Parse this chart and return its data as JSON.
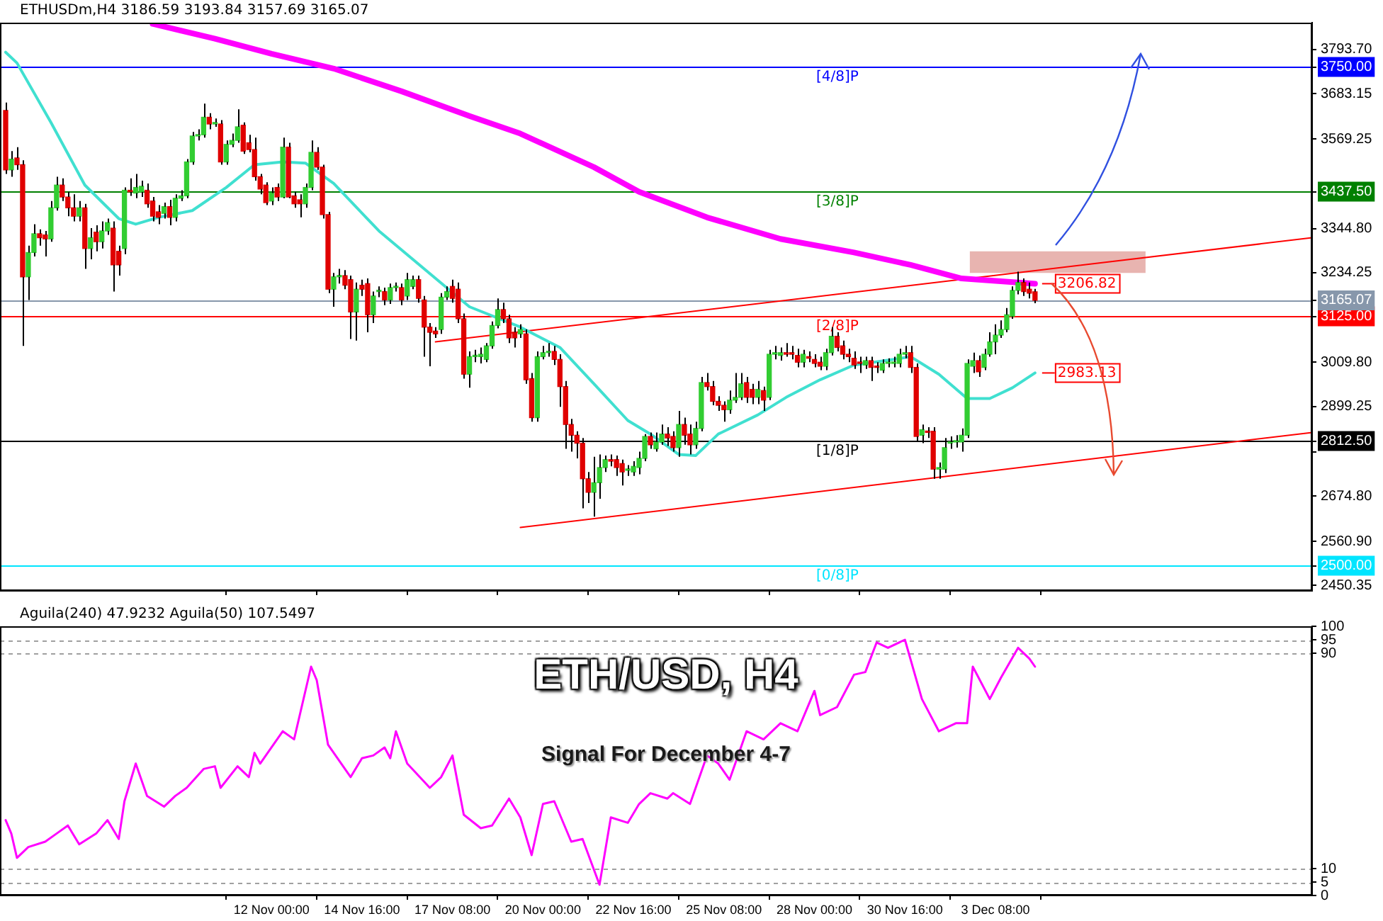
{
  "chart_data": [
    {
      "type": "candlestick",
      "title": "ETHUSDm,H4 3186.59 3193.84 3157.69 3165.07",
      "x": [
        "--11-04T04:00",
        "--11-04T08:00",
        "--11-04T12:00",
        "--11-04T16:00",
        "--11-04T20:00",
        "--11-05T00:00",
        "--11-05T04:00",
        "--11-05T08:00",
        "--11-05T12:00",
        "--11-05T16:00",
        "--11-05T20:00",
        "--11-06T00:00",
        "--11-06T04:00",
        "--11-06T08:00",
        "--11-06T12:00",
        "--11-06T16:00",
        "--11-06T20:00",
        "--11-07T00:00",
        "--11-07T04:00",
        "--11-07T08:00",
        "--11-07T12:00",
        "--11-07T16:00",
        "--11-07T20:00",
        "--11-08T00:00",
        "--11-08T04:00",
        "--11-08T08:00",
        "--11-08T12:00",
        "--11-08T16:00",
        "--11-08T20:00",
        "--11-09T00:00",
        "--11-09T04:00",
        "--11-09T08:00",
        "--11-09T12:00",
        "--11-09T16:00",
        "--11-09T20:00",
        "--11-10T00:00",
        "--11-10T04:00",
        "--11-10T08:00",
        "--11-10T12:00",
        "--11-10T16:00",
        "--11-10T20:00",
        "--11-11T00:00",
        "--11-11T04:00",
        "--11-11T08:00",
        "--11-11T12:00",
        "--11-11T16:00",
        "--11-11T20:00",
        "--11-12T00:00",
        "--11-12T04:00",
        "--11-12T08:00",
        "--11-12T12:00",
        "--11-12T16:00",
        "--11-12T20:00",
        "--11-13T00:00",
        "--11-13T04:00",
        "--11-13T08:00",
        "--11-13T12:00",
        "--11-13T16:00",
        "--11-13T20:00",
        "--11-14T00:00",
        "--11-14T04:00",
        "--11-14T08:00",
        "--11-14T12:00",
        "--11-14T16:00",
        "--11-14T20:00",
        "--11-15T00:00",
        "--11-15T04:00",
        "--11-15T08:00",
        "--11-15T12:00",
        "--11-15T16:00",
        "--11-15T20:00",
        "--11-16T00:00",
        "--11-16T04:00",
        "--11-16T08:00",
        "--11-16T12:00",
        "--11-16T16:00",
        "--11-16T20:00",
        "--11-17T00:00",
        "--11-17T04:00",
        "--11-17T08:00",
        "--11-17T12:00",
        "--11-17T16:00",
        "--11-17T20:00",
        "--11-18T00:00",
        "--11-18T04:00",
        "--11-18T08:00",
        "--11-18T12:00",
        "--11-18T16:00",
        "--11-18T20:00",
        "--11-19T00:00",
        "--11-19T04:00",
        "--11-19T08:00",
        "--11-19T12:00",
        "--11-19T16:00",
        "--11-19T20:00",
        "--11-20T00:00",
        "--11-20T04:00",
        "--11-20T08:00",
        "--11-20T12:00",
        "--11-20T16:00",
        "--11-20T20:00",
        "--11-21T00:00",
        "--11-21T04:00",
        "--11-21T08:00",
        "--11-21T12:00",
        "--11-21T16:00",
        "--11-21T20:00",
        "--11-22T00:00",
        "--11-22T04:00",
        "--11-22T08:00",
        "--11-22T12:00",
        "--11-22T16:00",
        "--11-22T20:00",
        "--11-23T00:00",
        "--11-23T04:00",
        "--11-23T08:00",
        "--11-23T12:00",
        "--11-23T16:00",
        "--11-23T20:00",
        "--11-24T00:00",
        "--11-24T04:00",
        "--11-24T08:00",
        "--11-24T12:00",
        "--11-24T16:00",
        "--11-24T20:00",
        "--11-25T00:00",
        "--11-25T04:00",
        "--11-25T08:00",
        "--11-25T12:00",
        "--11-25T16:00",
        "--11-25T20:00",
        "--11-26T00:00",
        "--11-26T04:00",
        "--11-26T08:00",
        "--11-26T12:00",
        "--11-26T16:00",
        "--11-26T20:00",
        "--11-27T00:00",
        "--11-27T04:00",
        "--11-27T08:00",
        "--11-27T12:00",
        "--11-27T16:00",
        "--11-27T20:00",
        "--11-28T00:00",
        "--11-28T04:00",
        "--11-28T08:00",
        "--11-28T12:00",
        "--11-28T16:00",
        "--11-28T20:00",
        "--11-29T00:00",
        "--11-29T04:00",
        "--11-29T08:00",
        "--11-29T12:00",
        "--11-29T16:00",
        "--11-29T20:00",
        "--11-30T00:00",
        "--11-30T04:00",
        "--11-30T08:00",
        "--11-30T12:00",
        "--11-30T16:00",
        "--11-30T20:00",
        "--12-01T00:00",
        "--12-01T04:00",
        "--12-01T08:00",
        "--12-01T12:00",
        "--12-01T16:00",
        "--12-01T20:00",
        "--12-02T00:00",
        "--12-02T04:00",
        "--12-02T08:00",
        "--12-02T12:00",
        "--12-02T16:00",
        "--12-02T20:00",
        "--12-03T00:00",
        "--12-03T04:00",
        "--12-03T08:00",
        "--12-03T12:00",
        "--12-03T16:00",
        "--12-03T20:00",
        "--12-04T00:00",
        "--12-04T04:00",
        "--12-04T08:00",
        "--12-04T12:00"
      ],
      "ohlc": [
        [
          3641,
          3661,
          3482,
          3492
        ],
        [
          3492,
          3539,
          3475,
          3519
        ],
        [
          3522,
          3549,
          3492,
          3505
        ],
        [
          3505,
          3516,
          3051,
          3224
        ],
        [
          3224,
          3302,
          3166,
          3285
        ],
        [
          3285,
          3356,
          3275,
          3332
        ],
        [
          3332,
          3343,
          3302,
          3322
        ],
        [
          3329,
          3339,
          3275,
          3319
        ],
        [
          3319,
          3414,
          3312,
          3397
        ],
        [
          3397,
          3475,
          3390,
          3454
        ],
        [
          3454,
          3471,
          3414,
          3424
        ],
        [
          3424,
          3437,
          3376,
          3397
        ],
        [
          3397,
          3431,
          3363,
          3376
        ],
        [
          3376,
          3414,
          3363,
          3397
        ],
        [
          3397,
          3407,
          3244,
          3295
        ],
        [
          3295,
          3346,
          3268,
          3322
        ],
        [
          3336,
          3353,
          3288,
          3312
        ],
        [
          3312,
          3363,
          3295,
          3339
        ],
        [
          3339,
          3370,
          3329,
          3360
        ],
        [
          3346,
          3363,
          3187,
          3254
        ],
        [
          3288,
          3302,
          3227,
          3254
        ],
        [
          3295,
          3448,
          3281,
          3441
        ],
        [
          3441,
          3471,
          3427,
          3437
        ],
        [
          3434,
          3482,
          3421,
          3448
        ],
        [
          3437,
          3465,
          3424,
          3451
        ],
        [
          3441,
          3458,
          3397,
          3407
        ],
        [
          3414,
          3424,
          3363,
          3376
        ],
        [
          3387,
          3404,
          3356,
          3373
        ],
        [
          3383,
          3410,
          3370,
          3400
        ],
        [
          3400,
          3417,
          3353,
          3373
        ],
        [
          3373,
          3431,
          3363,
          3421
        ],
        [
          3421,
          3441,
          3414,
          3427
        ],
        [
          3427,
          3519,
          3421,
          3512
        ],
        [
          3512,
          3587,
          3505,
          3577
        ],
        [
          3577,
          3594,
          3566,
          3580
        ],
        [
          3580,
          3658,
          3573,
          3624
        ],
        [
          3624,
          3634,
          3594,
          3607
        ],
        [
          3607,
          3621,
          3600,
          3611
        ],
        [
          3607,
          3617,
          3505,
          3512
        ],
        [
          3512,
          3566,
          3505,
          3556
        ],
        [
          3556,
          3583,
          3549,
          3566
        ],
        [
          3566,
          3644,
          3560,
          3600
        ],
        [
          3604,
          3611,
          3532,
          3539
        ],
        [
          3560,
          3580,
          3536,
          3543
        ],
        [
          3543,
          3573,
          3465,
          3475
        ],
        [
          3475,
          3482,
          3431,
          3444
        ],
        [
          3454,
          3461,
          3404,
          3410
        ],
        [
          3414,
          3448,
          3404,
          3434
        ],
        [
          3448,
          3458,
          3414,
          3424
        ],
        [
          3424,
          3573,
          3421,
          3549
        ],
        [
          3549,
          3560,
          3421,
          3424
        ],
        [
          3427,
          3437,
          3397,
          3407
        ],
        [
          3417,
          3431,
          3373,
          3407
        ],
        [
          3407,
          3458,
          3397,
          3448
        ],
        [
          3448,
          3566,
          3441,
          3536
        ],
        [
          3536,
          3549,
          3492,
          3499
        ],
        [
          3499,
          3505,
          3370,
          3380
        ],
        [
          3380,
          3387,
          3183,
          3193
        ],
        [
          3193,
          3234,
          3149,
          3224
        ],
        [
          3224,
          3244,
          3207,
          3227
        ],
        [
          3227,
          3241,
          3193,
          3203
        ],
        [
          3217,
          3227,
          3068,
          3136
        ],
        [
          3136,
          3210,
          3064,
          3193
        ],
        [
          3203,
          3217,
          3176,
          3193
        ],
        [
          3207,
          3220,
          3085,
          3129
        ],
        [
          3129,
          3187,
          3108,
          3176
        ],
        [
          3187,
          3200,
          3173,
          3190
        ],
        [
          3187,
          3197,
          3153,
          3166
        ],
        [
          3166,
          3207,
          3156,
          3197
        ],
        [
          3197,
          3210,
          3187,
          3200
        ],
        [
          3197,
          3207,
          3153,
          3166
        ],
        [
          3176,
          3234,
          3166,
          3217
        ],
        [
          3200,
          3227,
          3193,
          3217
        ],
        [
          3217,
          3227,
          3159,
          3170
        ],
        [
          3166,
          3176,
          3024,
          3098
        ],
        [
          3098,
          3108,
          3000,
          3085
        ],
        [
          3088,
          3098,
          3071,
          3081
        ],
        [
          3092,
          3183,
          3081,
          3173
        ],
        [
          3173,
          3200,
          3166,
          3187
        ],
        [
          3200,
          3217,
          3159,
          3170
        ],
        [
          3193,
          3210,
          3108,
          3119
        ],
        [
          3119,
          3132,
          2969,
          2980
        ],
        [
          2980,
          3037,
          2946,
          3024
        ],
        [
          3024,
          3041,
          3010,
          3027
        ],
        [
          3024,
          3047,
          3007,
          3030
        ],
        [
          3017,
          3058,
          3010,
          3051
        ],
        [
          3051,
          3112,
          3044,
          3102
        ],
        [
          3102,
          3170,
          3095,
          3142
        ],
        [
          3142,
          3159,
          3108,
          3119
        ],
        [
          3119,
          3129,
          3058,
          3071
        ],
        [
          3085,
          3098,
          3047,
          3071
        ],
        [
          3081,
          3105,
          3071,
          3092
        ],
        [
          3081,
          3092,
          2956,
          2966
        ],
        [
          2969,
          2983,
          2861,
          2871
        ],
        [
          2871,
          3037,
          2861,
          3024
        ],
        [
          3024,
          3051,
          3017,
          3034
        ],
        [
          3034,
          3058,
          3024,
          3037
        ],
        [
          3037,
          3051,
          3003,
          3017
        ],
        [
          3017,
          3030,
          2898,
          2949
        ],
        [
          2949,
          2963,
          2793,
          2854
        ],
        [
          2854,
          2868,
          2786,
          2827
        ],
        [
          2827,
          2837,
          2769,
          2807
        ],
        [
          2807,
          2820,
          2644,
          2718
        ],
        [
          2718,
          2735,
          2657,
          2684
        ],
        [
          2684,
          2773,
          2623,
          2708
        ],
        [
          2708,
          2779,
          2668,
          2746
        ],
        [
          2746,
          2776,
          2735,
          2766
        ],
        [
          2766,
          2779,
          2749,
          2762
        ],
        [
          2766,
          2776,
          2725,
          2746
        ],
        [
          2756,
          2766,
          2701,
          2735
        ],
        [
          2739,
          2752,
          2725,
          2742
        ],
        [
          2735,
          2762,
          2725,
          2749
        ],
        [
          2746,
          2786,
          2729,
          2769
        ],
        [
          2769,
          2830,
          2762,
          2824
        ],
        [
          2824,
          2834,
          2793,
          2803
        ],
        [
          2793,
          2834,
          2786,
          2810
        ],
        [
          2810,
          2854,
          2803,
          2830
        ],
        [
          2830,
          2847,
          2800,
          2820
        ],
        [
          2824,
          2837,
          2786,
          2796
        ],
        [
          2796,
          2888,
          2773,
          2854
        ],
        [
          2854,
          2871,
          2803,
          2827
        ],
        [
          2830,
          2854,
          2779,
          2803
        ],
        [
          2803,
          2861,
          2793,
          2844
        ],
        [
          2844,
          2973,
          2837,
          2959
        ],
        [
          2959,
          2983,
          2939,
          2949
        ],
        [
          2949,
          2963,
          2902,
          2912
        ],
        [
          2912,
          2925,
          2888,
          2902
        ],
        [
          2902,
          2912,
          2861,
          2891
        ],
        [
          2891,
          2939,
          2881,
          2915
        ],
        [
          2915,
          2983,
          2908,
          2922
        ],
        [
          2922,
          2983,
          2915,
          2956
        ],
        [
          2959,
          2973,
          2908,
          2922
        ],
        [
          2942,
          2956,
          2905,
          2922
        ],
        [
          2922,
          2963,
          2905,
          2942
        ],
        [
          2939,
          2949,
          2888,
          2915
        ],
        [
          2922,
          3041,
          2915,
          3030
        ],
        [
          3030,
          3051,
          3017,
          3034
        ],
        [
          3027,
          3047,
          3014,
          3034
        ],
        [
          3034,
          3058,
          3024,
          3030
        ],
        [
          3034,
          3051,
          3017,
          3030
        ],
        [
          3027,
          3044,
          2997,
          3010
        ],
        [
          3010,
          3041,
          2997,
          3030
        ],
        [
          3024,
          3037,
          3010,
          3020
        ],
        [
          3017,
          3030,
          2997,
          3007
        ],
        [
          3010,
          3024,
          2990,
          3000
        ],
        [
          3000,
          3044,
          2990,
          3034
        ],
        [
          3034,
          3098,
          3027,
          3075
        ],
        [
          3075,
          3085,
          3037,
          3047
        ],
        [
          3051,
          3064,
          3017,
          3030
        ],
        [
          3030,
          3044,
          3010,
          3024
        ],
        [
          3020,
          3037,
          2993,
          3003
        ],
        [
          3010,
          3024,
          2983,
          3007
        ],
        [
          3003,
          3024,
          2993,
          3014
        ],
        [
          3014,
          3024,
          2963,
          2997
        ],
        [
          3000,
          3010,
          2983,
          2997
        ],
        [
          2990,
          3017,
          2983,
          3007
        ],
        [
          3007,
          3020,
          2997,
          3010
        ],
        [
          3007,
          3024,
          2997,
          3010
        ],
        [
          3007,
          3044,
          2997,
          3030
        ],
        [
          3030,
          3051,
          3020,
          3034
        ],
        [
          3034,
          3051,
          2983,
          2997
        ],
        [
          2997,
          3007,
          2813,
          2824
        ],
        [
          2827,
          2854,
          2807,
          2841
        ],
        [
          2837,
          2847,
          2820,
          2834
        ],
        [
          2837,
          2847,
          2718,
          2742
        ],
        [
          2742,
          2759,
          2718,
          2746
        ],
        [
          2742,
          2820,
          2732,
          2796
        ],
        [
          2807,
          2824,
          2793,
          2810
        ],
        [
          2810,
          2827,
          2796,
          2813
        ],
        [
          2810,
          2844,
          2786,
          2827
        ],
        [
          2827,
          3017,
          2820,
          3007
        ],
        [
          3000,
          3034,
          2983,
          3014
        ],
        [
          3014,
          3027,
          2973,
          2986
        ],
        [
          2997,
          3044,
          2990,
          3030
        ],
        [
          3030,
          3085,
          3024,
          3061
        ],
        [
          3061,
          3105,
          3030,
          3078
        ],
        [
          3078,
          3115,
          3071,
          3092
        ],
        [
          3092,
          3146,
          3085,
          3129
        ],
        [
          3125,
          3200,
          3119,
          3190
        ],
        [
          3190,
          3237,
          3180,
          3210
        ],
        [
          3210,
          3220,
          3176,
          3187
        ],
        [
          3193,
          3210,
          3170,
          3183
        ],
        [
          3186.59,
          3193.84,
          3157.69,
          3165.07
        ]
      ],
      "series": [
        {
          "type": "line",
          "color": "#ff00ff",
          "x": [
            "--11-08T12:00",
            "--11-10T08:00",
            "--11-12T00:00",
            "--11-13T20:00",
            "--11-15T20:00",
            "--11-17T20:00",
            "--11-19T08:00",
            "--11-21T12:00",
            "--11-22T20:00",
            "--11-24T20:00",
            "--11-27T00:00",
            "--11-29T04:00",
            "--11-30T20:00",
            "--12-02T08:00",
            "--12-04T12:00"
          ],
          "values": [
            3858,
            3821,
            3783,
            3746,
            3689,
            3627,
            3583,
            3499,
            3437,
            3373,
            3319,
            3285,
            3254,
            3220,
            3206.82
          ]
        },
        {
          "type": "line",
          "color": "#40e0d0",
          "x": [
            "--11-04T04:00",
            "--11-04T12:00",
            "--11-05T12:00",
            "--11-06T12:00",
            "--11-07T12:00",
            "--11-08T00:00",
            "--11-08T16:00",
            "--11-09T16:00",
            "--11-10T16:00",
            "--11-11T12:00",
            "--11-12T08:00",
            "--11-13T00:00",
            "--11-13T20:00",
            "--11-15T04:00",
            "--11-16T12:00",
            "--11-17T20:00",
            "--11-19T08:00",
            "--11-20T12:00",
            "--11-21T12:00",
            "--11-22T12:00",
            "--11-23T04:00",
            "--11-24T00:00",
            "--11-24T12:00",
            "--11-25T04:00",
            "--11-26T08:00",
            "--11-27T04:00",
            "--11-28T04:00",
            "--11-29T04:00",
            "--11-30T08:00",
            "--11-30T20:00",
            "--12-01T16:00",
            "--12-02T12:00",
            "--12-03T04:00",
            "--12-03T20:00",
            "--12-04T12:00"
          ],
          "values": [
            3787,
            3760,
            3611,
            3454,
            3370,
            3356,
            3373,
            3390,
            3448,
            3505,
            3512,
            3509,
            3458,
            3339,
            3244,
            3149,
            3098,
            3047,
            2956,
            2864,
            2830,
            2779,
            2776,
            2830,
            2878,
            2922,
            2966,
            3003,
            3017,
            3024,
            2980,
            2919,
            2919,
            2946,
            2983.13
          ]
        },
        {
          "type": "line",
          "color": "#ff0000",
          "x": [
            "--11-16T20:00",
            "--12-12T16:00"
          ],
          "values": [
            3061,
            3322
          ]
        },
        {
          "type": "line",
          "color": "#ff0000",
          "x": [
            "--11-19T08:00",
            "--12-12T16:00"
          ],
          "values": [
            2596,
            2834
          ]
        }
      ],
      "xlim": [
        "--11-04T00:00",
        "--12-12T16:00"
      ],
      "ylim": [
        2437,
        3861
      ],
      "xticks": [
        {
          "value": "--11-12T00:00",
          "label": null
        },
        {
          "value": "--11-14T16:00",
          "label": null
        },
        {
          "value": "--11-17T08:00",
          "label": null
        },
        {
          "value": "--11-20T00:00",
          "label": null
        },
        {
          "value": "--11-22T16:00",
          "label": null
        },
        {
          "value": "--11-25T08:00",
          "label": null
        },
        {
          "value": "--11-28T00:00",
          "label": null
        },
        {
          "value": "--11-30T16:00",
          "label": null
        },
        {
          "value": "--12-03T08:00",
          "label": null
        }
      ],
      "yticks": [
        {
          "value": 2450.35,
          "label": "2450.35"
        },
        {
          "value": 2500,
          "label": "2500.00"
        },
        {
          "value": 2560.9,
          "label": "2560.90"
        },
        {
          "value": 2674.8,
          "label": "2674.80"
        },
        {
          "value": 2785.35,
          "label": null
        },
        {
          "value": 2812.5,
          "label": "2812.50"
        },
        {
          "value": 2899.25,
          "label": "2899.25"
        },
        {
          "value": 3009.8,
          "label": "3009.80"
        },
        {
          "value": 3125,
          "label": "3125.00"
        },
        {
          "value": 3165.07,
          "label": "3165.07"
        },
        {
          "value": 3234.25,
          "label": "3234.25"
        },
        {
          "value": 3344.8,
          "label": "3344.80"
        },
        {
          "value": 3437.5,
          "label": "3437.50"
        },
        {
          "value": 3569.25,
          "label": "3569.25"
        },
        {
          "value": 3683.15,
          "label": "3683.15"
        },
        {
          "value": 3750,
          "label": "3750.00"
        },
        {
          "value": 3793.7,
          "label": "3793.70"
        }
      ],
      "tick_labels": "y",
      "ref_lines": [
        {
          "axis": "y",
          "value": 3750,
          "label": "[4/8]P",
          "color": "#0000ff"
        },
        {
          "axis": "y",
          "value": 3437.5,
          "label": "[3/8]P",
          "color": "#008000"
        },
        {
          "axis": "y",
          "value": 3125,
          "label": "[2/8]P",
          "color": "#ff0000"
        },
        {
          "axis": "y",
          "value": 2812.5,
          "label": "[1/8]P",
          "color": "#000000"
        },
        {
          "axis": "y",
          "value": 2500,
          "label": "[0/8]P",
          "color": "#00e5ff"
        },
        {
          "axis": "y",
          "value": 3165.07,
          "color": "#8797ab"
        }
      ],
      "bands": [
        {
          "axis": "y",
          "from": 3234,
          "to": 3288,
          "color": "#e8b4b0"
        }
      ],
      "annotations": [
        {
          "text": "3206.82",
          "x": "--12-04T12:00",
          "y": 3206.82
        },
        {
          "text": "2983.13",
          "x": "--12-04T12:00",
          "y": 2983.13
        }
      ]
    },
    {
      "type": "line",
      "title": "Aguila(240) 47.9232 Aguila(50) 107.5497",
      "color": "#ff00ff",
      "x": [
        "--11-04T04:00",
        "--11-04T08:00",
        "--11-04T12:00",
        "--11-04T20:00",
        "--11-05T08:00",
        "--11-05T16:00",
        "--11-06T00:00",
        "--11-06T08:00",
        "--11-06T20:00",
        "--11-07T04:00",
        "--11-07T12:00",
        "--11-07T16:00",
        "--11-08T00:00",
        "--11-08T08:00",
        "--11-08T20:00",
        "--11-09T04:00",
        "--11-09T12:00",
        "--11-10T00:00",
        "--11-10T08:00",
        "--11-10T12:00",
        "--11-11T00:00",
        "--11-11T08:00",
        "--11-11T12:00",
        "--11-11T16:00",
        "--11-11T20:00",
        "--11-12T08:00",
        "--11-12T16:00",
        "--11-13T04:00",
        "--11-13T08:00",
        "--11-13T16:00",
        "--11-14T08:00",
        "--11-14T16:00",
        "--11-15T00:00",
        "--11-15T08:00",
        "--11-15T12:00",
        "--11-15T16:00",
        "--11-16T00:00",
        "--11-16T16:00",
        "--11-17T00:00",
        "--11-17T08:00",
        "--11-17T16:00",
        "--11-18T04:00",
        "--11-18T12:00",
        "--11-19T00:00",
        "--11-19T08:00",
        "--11-19T16:00",
        "--11-20T00:00",
        "--11-20T08:00",
        "--11-20T20:00",
        "--11-21T04:00",
        "--11-21T16:00",
        "--11-22T00:00",
        "--11-22T12:00",
        "--11-22T20:00",
        "--11-23T04:00",
        "--11-23T16:00",
        "--11-23T20:00",
        "--11-24T08:00",
        "--11-24T20:00",
        "--11-25T04:00",
        "--11-25T12:00",
        "--11-26T00:00",
        "--11-26T12:00",
        "--11-27T00:00",
        "--11-27T12:00",
        "--11-28T00:00",
        "--11-28T04:00",
        "--11-28T16:00",
        "--11-29T04:00",
        "--11-29T12:00",
        "--11-29T20:00",
        "--11-30T04:00",
        "--11-30T16:00",
        "--12-01T04:00",
        "--12-01T16:00",
        "--12-02T04:00",
        "--12-02T12:00",
        "--12-02T16:00",
        "--12-03T04:00",
        "--12-03T12:00",
        "--12-04T00:00",
        "--12-04T08:00",
        "--12-04T12:00"
      ],
      "values": [
        28,
        23,
        14,
        18,
        20,
        23,
        26,
        19,
        23,
        28,
        21,
        35,
        49,
        37,
        33,
        37,
        40,
        47,
        48,
        40,
        48,
        44,
        53,
        49,
        52,
        61,
        58,
        85,
        80,
        56,
        44,
        51,
        52,
        55,
        51,
        61,
        49,
        40,
        44,
        52,
        30,
        25,
        26,
        36,
        29,
        15,
        34,
        35,
        20,
        21,
        4,
        29,
        27,
        34,
        38,
        36,
        38,
        34,
        52,
        49,
        43,
        61,
        58,
        64,
        61,
        76,
        67,
        70,
        82,
        83,
        94,
        92,
        95,
        73,
        61,
        64,
        64,
        85,
        73,
        81,
        92,
        88,
        85
      ],
      "xlim": [
        "--11-04T00:00",
        "--12-12T16:00"
      ],
      "ylim": [
        0,
        100
      ],
      "xticks": [
        {
          "value": "--11-12T00:00",
          "label": "12 Nov 00:00"
        },
        {
          "value": "--11-14T16:00",
          "label": "14 Nov 16:00"
        },
        {
          "value": "--11-17T08:00",
          "label": "17 Nov 08:00"
        },
        {
          "value": "--11-20T00:00",
          "label": "20 Nov 00:00"
        },
        {
          "value": "--11-22T16:00",
          "label": "22 Nov 16:00"
        },
        {
          "value": "--11-25T08:00",
          "label": "25 Nov 08:00"
        },
        {
          "value": "--11-28T00:00",
          "label": "28 Nov 00:00"
        },
        {
          "value": "--11-30T16:00",
          "label": "30 Nov 16:00"
        },
        {
          "value": "--12-03T08:00",
          "label": "3 Dec 08:00"
        }
      ],
      "yticks": [
        0,
        5,
        10,
        90,
        95,
        100
      ],
      "grid": "y",
      "annotations": [
        "ETH/USD, H4",
        "Signal For December 4-7"
      ]
    }
  ]
}
